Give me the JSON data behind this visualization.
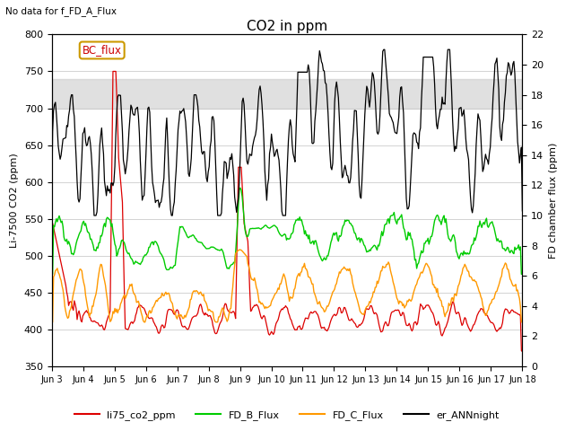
{
  "title": "CO2 in ppm",
  "subtitle": "No data for f_FD_A_Flux",
  "ylabel_left": "Li-7500 CO2 (ppm)",
  "ylabel_right": "FD chamber flux (ppm)",
  "ylim_left": [
    350,
    800
  ],
  "ylim_right": [
    0,
    22
  ],
  "xlim": [
    0,
    15
  ],
  "xtick_labels": [
    "Jun 3",
    "Jun 4",
    "Jun 5",
    "Jun 6",
    "Jun 7",
    "Jun 8",
    "Jun 9",
    "Jun 10",
    "Jun 11",
    "Jun 12",
    "Jun 13",
    "Jun 14",
    "Jun 15",
    "Jun 16",
    "Jun 17",
    "Jun 18"
  ],
  "yticks_left": [
    350,
    400,
    450,
    500,
    550,
    600,
    650,
    700,
    750,
    800
  ],
  "yticks_right": [
    0,
    2,
    4,
    6,
    8,
    10,
    12,
    14,
    16,
    18,
    20,
    22
  ],
  "shade_band": [
    700,
    740
  ],
  "bc_flux_label": "BC_flux",
  "legend_entries": [
    "li75_co2_ppm",
    "FD_B_Flux",
    "FD_C_Flux",
    "er_ANNnight"
  ],
  "legend_colors": [
    "#dd0000",
    "#00cc00",
    "#ff9900",
    "#000000"
  ],
  "line_colors": {
    "li75": "#dd0000",
    "fd_b": "#00cc00",
    "fd_c": "#ff9900",
    "er_ann": "#000000"
  },
  "background_color": "#ffffff"
}
